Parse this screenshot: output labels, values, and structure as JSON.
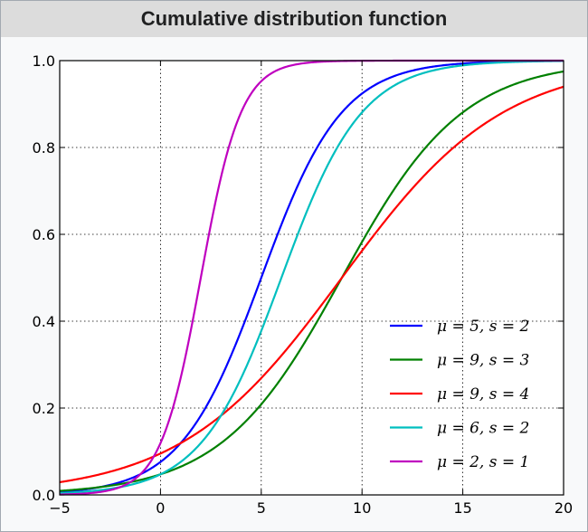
{
  "header": {
    "title": "Cumulative distribution function"
  },
  "chart_data": {
    "type": "line",
    "title": "Cumulative distribution function",
    "xlabel": "",
    "ylabel": "",
    "xlim": [
      -5,
      20
    ],
    "ylim": [
      0,
      1
    ],
    "xticks": [
      -5,
      0,
      5,
      10,
      15,
      20
    ],
    "yticks": [
      0.0,
      0.2,
      0.4,
      0.6,
      0.8,
      1.0
    ],
    "xtick_labels": [
      "−5",
      "0",
      "5",
      "10",
      "15",
      "20"
    ],
    "ytick_labels": [
      "0.0",
      "0.2",
      "0.4",
      "0.6",
      "0.8",
      "1.0"
    ],
    "grid": true,
    "legend_position": "lower-right",
    "series": [
      {
        "name": "μ = 5,  s = 2",
        "mu": 5,
        "s": 2,
        "color": "#0000ff",
        "x": [
          -5,
          -2.5,
          0,
          2.5,
          5,
          7.5,
          10,
          12.5,
          15,
          17.5,
          20
        ],
        "y": [
          0.007,
          0.023,
          0.076,
          0.223,
          0.5,
          0.777,
          0.924,
          0.977,
          0.993,
          0.998,
          0.999
        ]
      },
      {
        "name": "μ = 9,  s = 3",
        "mu": 9,
        "s": 3,
        "color": "#008000",
        "x": [
          -5,
          -2.5,
          0,
          2.5,
          5,
          7.5,
          10,
          12.5,
          15,
          17.5,
          20
        ],
        "y": [
          0.009,
          0.021,
          0.047,
          0.103,
          0.209,
          0.378,
          0.583,
          0.762,
          0.881,
          0.944,
          0.975
        ]
      },
      {
        "name": "μ = 9,  s = 4",
        "mu": 9,
        "s": 4,
        "color": "#ff0000",
        "x": [
          -5,
          -2.5,
          0,
          2.5,
          5,
          7.5,
          10,
          12.5,
          15,
          17.5,
          20
        ],
        "y": [
          0.029,
          0.053,
          0.095,
          0.165,
          0.269,
          0.407,
          0.562,
          0.705,
          0.818,
          0.893,
          0.94
        ]
      },
      {
        "name": "μ = 6,  s = 2",
        "mu": 6,
        "s": 2,
        "color": "#00bfbf",
        "x": [
          -5,
          -2.5,
          0,
          2.5,
          5,
          7.5,
          10,
          12.5,
          15,
          17.5,
          20
        ],
        "y": [
          0.004,
          0.014,
          0.047,
          0.148,
          0.378,
          0.679,
          0.881,
          0.963,
          0.989,
          0.997,
          0.999
        ]
      },
      {
        "name": "μ = 2,  s = 1",
        "mu": 2,
        "s": 1,
        "color": "#bf00bf",
        "x": [
          -5,
          -2.5,
          -1,
          0,
          1,
          2,
          3,
          4,
          5,
          7.5,
          10,
          20
        ],
        "y": [
          0.001,
          0.011,
          0.047,
          0.119,
          0.269,
          0.5,
          0.731,
          0.881,
          0.953,
          0.996,
          1.0,
          1.0
        ]
      }
    ]
  }
}
